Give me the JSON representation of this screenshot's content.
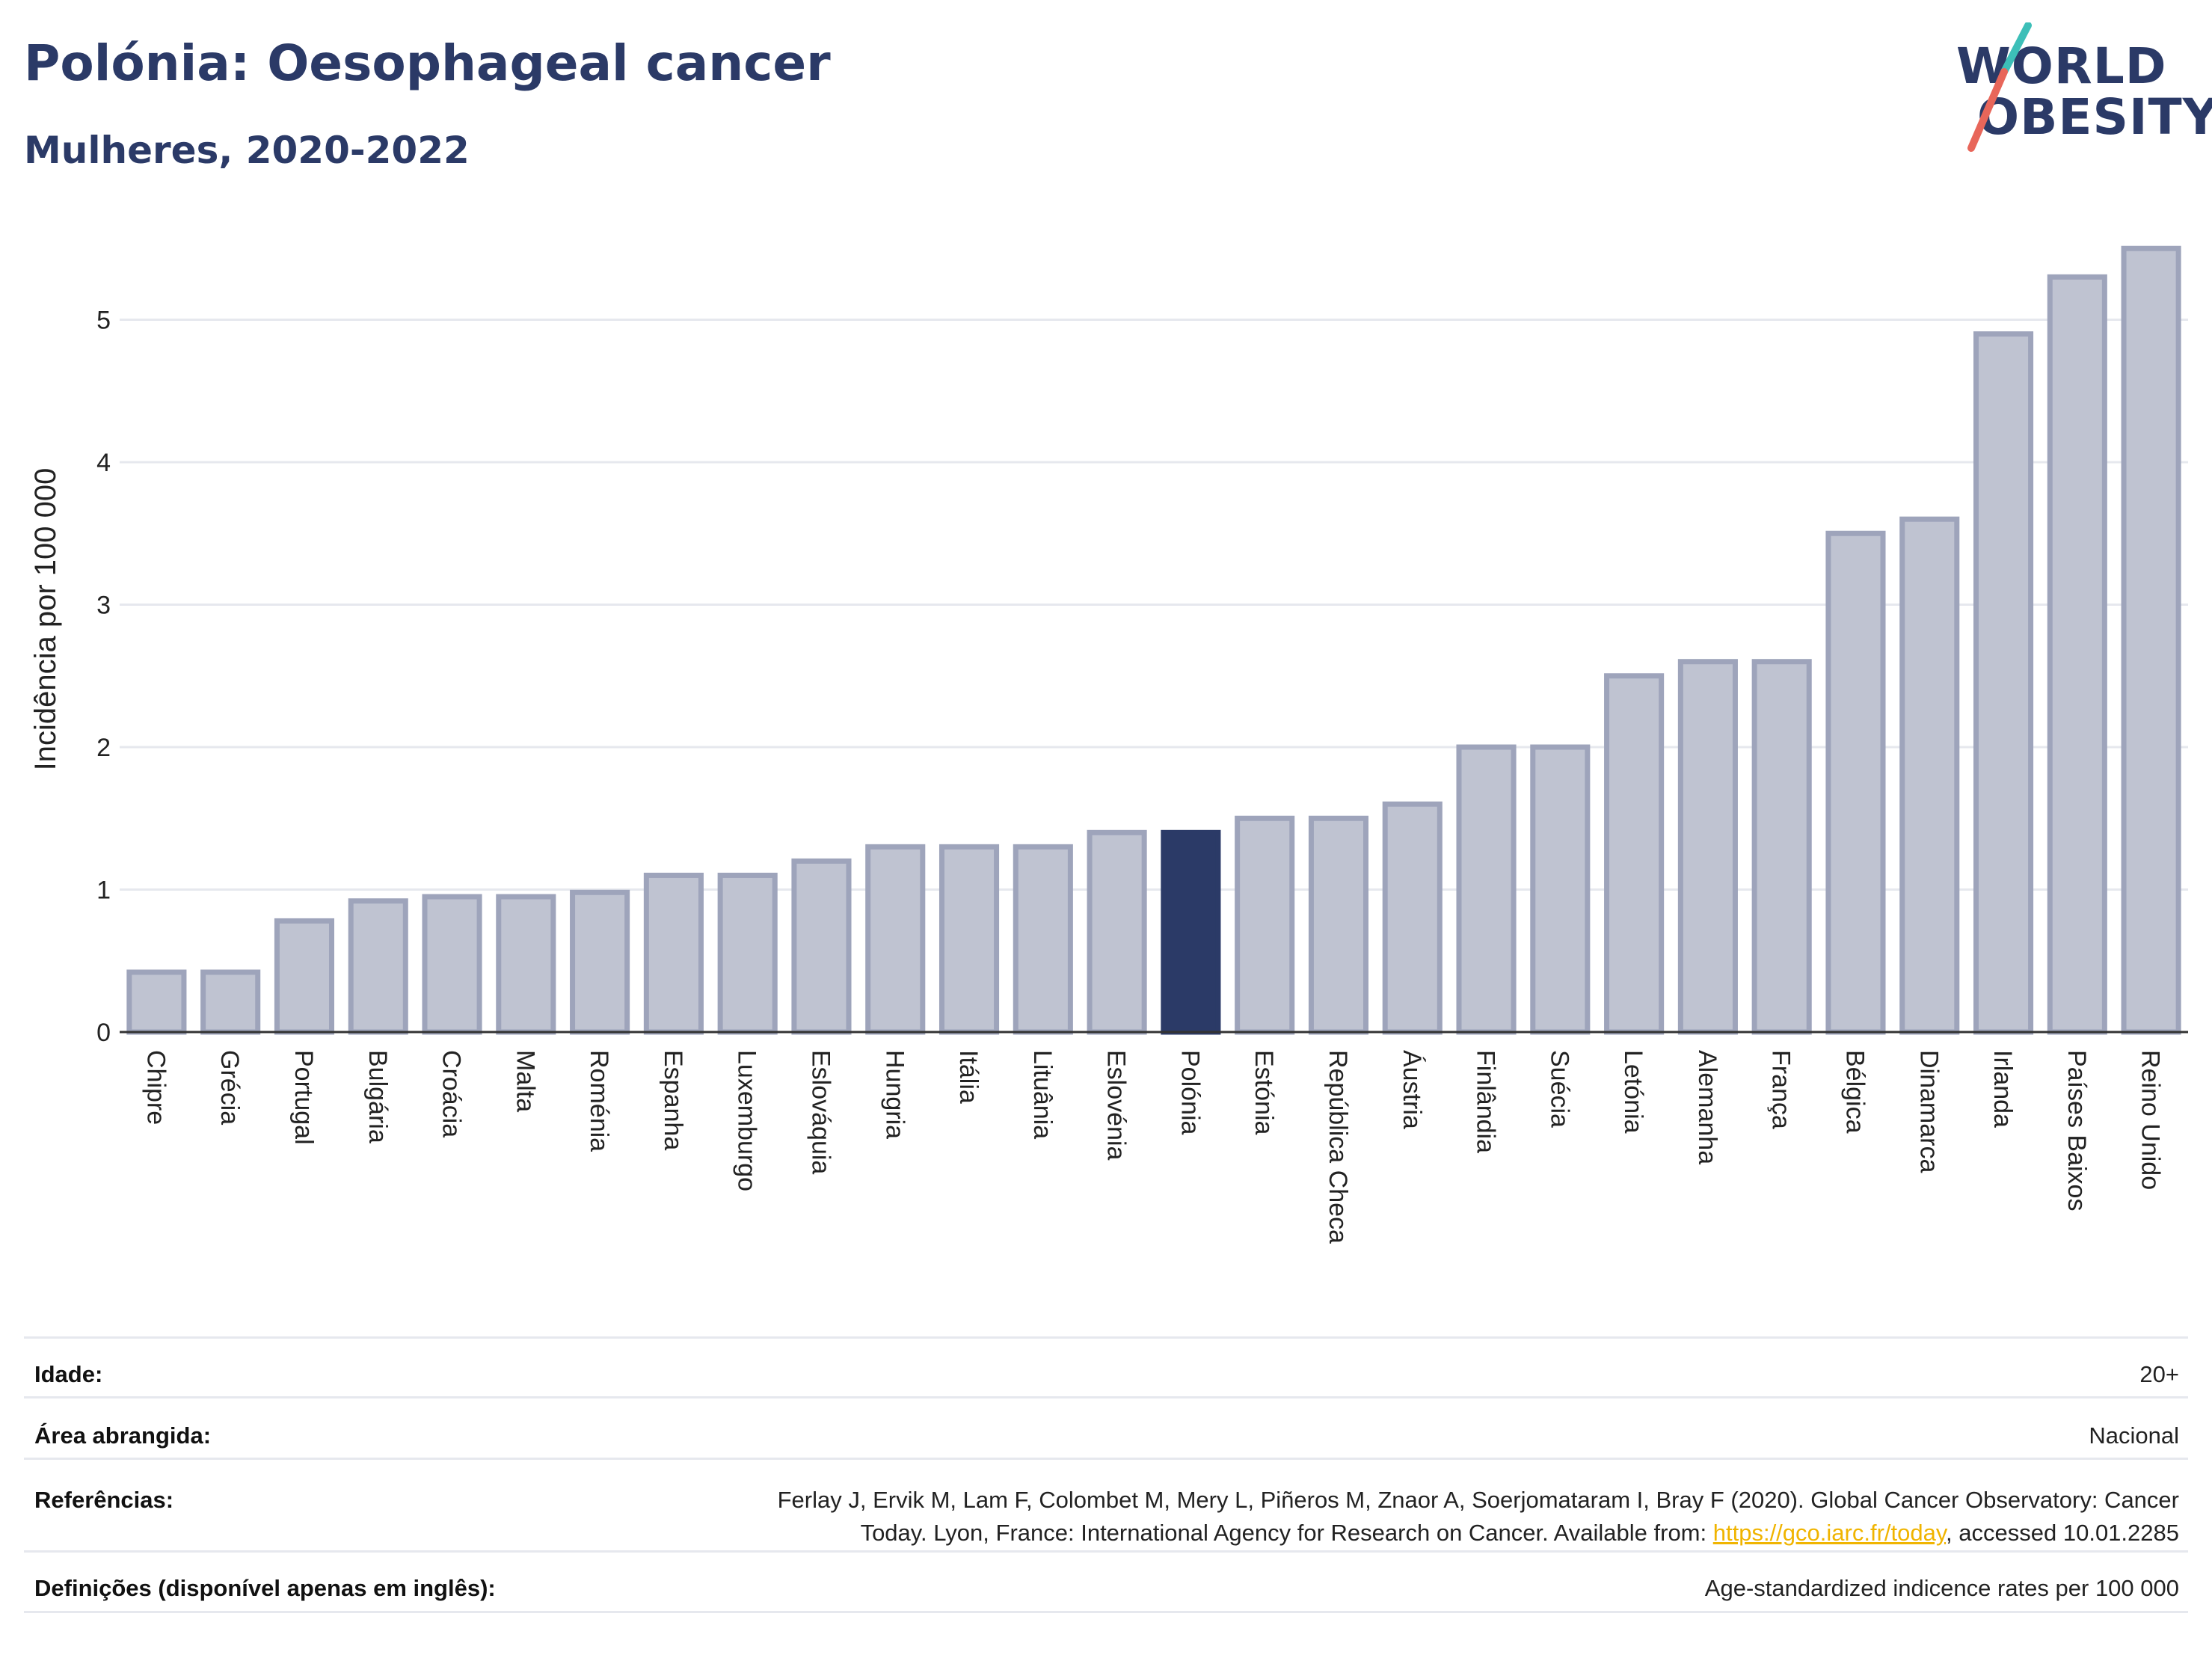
{
  "header": {
    "title": "Polónia: Oesophageal cancer",
    "subtitle": "Mulheres, 2020-2022"
  },
  "logo": {
    "line1": "WORLD",
    "line2": "OBESITY",
    "colors": {
      "text": "#2b3a67",
      "slash_teal": "#3dbfb8",
      "slash_red": "#e8665a"
    }
  },
  "chart_data": {
    "type": "bar",
    "ylabel": "Incidência por 100 000",
    "xlabel": "",
    "ylim": [
      0,
      5.6
    ],
    "yticks": [
      0,
      1,
      2,
      3,
      4,
      5
    ],
    "grid": true,
    "highlight": "Polónia",
    "colors": {
      "bar": "#bfc3d1",
      "bar_border": "#9ea4bb",
      "highlight": "#2b3a67",
      "grid": "#e6e8ee",
      "axis": "#333333"
    },
    "categories": [
      "Chipre",
      "Grécia",
      "Portugal",
      "Bulgária",
      "Croácia",
      "Malta",
      "Roménia",
      "Espanha",
      "Luxemburgo",
      "Eslováquia",
      "Hungria",
      "Itália",
      "Lituânia",
      "Eslovénia",
      "Polónia",
      "Estónia",
      "República Checa",
      "Áustria",
      "Finlândia",
      "Suécia",
      "Letónia",
      "Alemanha",
      "França",
      "Bélgica",
      "Dinamarca",
      "Irlanda",
      "Países Baixos",
      "Reino Unido"
    ],
    "values": [
      0.42,
      0.42,
      0.78,
      0.92,
      0.95,
      0.95,
      0.98,
      1.1,
      1.1,
      1.2,
      1.3,
      1.3,
      1.3,
      1.4,
      1.4,
      1.5,
      1.5,
      1.6,
      2.0,
      2.0,
      2.5,
      2.6,
      2.6,
      3.5,
      3.6,
      4.9,
      5.3,
      5.5
    ]
  },
  "footer": {
    "age_label": "Idade:",
    "age_value": "20+",
    "area_label": "Área abrangida:",
    "area_value": "Nacional",
    "ref_label": "Referências:",
    "ref_text_1": "Ferlay J, Ervik M, Lam F, Colombet M, Mery L, Piñeros M, Znaor A, Soerjomataram I, Bray F (2020). Global Cancer Observatory: Cancer",
    "ref_text_2": "Today. Lyon, France: International Agency for Research on Cancer. Available from: ",
    "ref_link": "https://gco.iarc.fr/today",
    "ref_text_3": ", accessed 10.01.2285",
    "def_label": "Definições (disponível apenas em inglês):",
    "def_value": "Age-standardized indicence rates per 100 000"
  }
}
